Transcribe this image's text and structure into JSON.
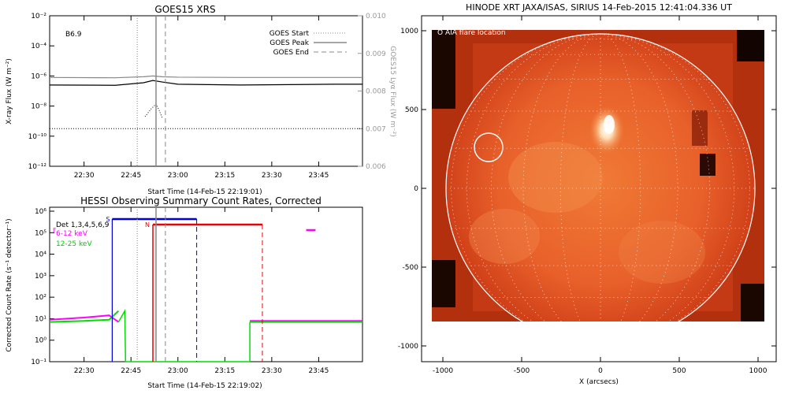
{
  "chart_data": [
    {
      "type": "line",
      "title": "GOES15 XRS",
      "xlabel": "Start Time (14-Feb-15 22:19:01)",
      "ylabel": "X-ray Flux (W m⁻²)",
      "y2label": "GOES15 Lyα Flux (W m⁻²)",
      "x_ticks": [
        "22:30",
        "22:45",
        "23:00",
        "23:15",
        "23:30",
        "23:45"
      ],
      "y_ticks": [
        "10⁻²",
        "10⁻⁴",
        "10⁻⁶",
        "10⁻⁸",
        "10⁻¹⁰",
        "10⁻¹²"
      ],
      "y2_ticks": [
        "0.010",
        "0.009",
        "0.008",
        "0.007",
        "0.006"
      ],
      "ylim_log10": [
        -12,
        -2
      ],
      "y2lim": [
        0.006,
        0.01
      ],
      "xlim_minutes_after_2219": [
        0,
        100
      ],
      "annotation": "B6.9",
      "legend": [
        "GOES Start",
        "GOES Peak",
        "GOES End"
      ],
      "legend_position": "top-right",
      "markers": {
        "start": "22:47",
        "peak": "22:53",
        "end": "22:56"
      },
      "series": [
        {
          "name": "",
          "color": "#888888",
          "style": "solid",
          "level_log10": -6.1,
          "x": [
            "22:19",
            "22:40",
            "22:49",
            "22:52",
            "22:55",
            "23:00",
            "23:20",
            "23:50",
            "23:59"
          ],
          "y_log10": [
            -6.1,
            -6.12,
            -6.05,
            -6.0,
            -6.05,
            -6.08,
            -6.1,
            -6.1,
            -6.1
          ]
        },
        {
          "name": "",
          "color": "#000000",
          "style": "solid",
          "x": [
            "22:19",
            "22:40",
            "22:49",
            "22:52",
            "22:55",
            "23:00",
            "23:20",
            "23:50",
            "23:59"
          ],
          "y_log10": [
            -6.6,
            -6.62,
            -6.45,
            -6.3,
            -6.4,
            -6.55,
            -6.6,
            -6.55,
            -6.55
          ]
        },
        {
          "name": "",
          "color": "#000000",
          "style": "dotted",
          "x": [
            "22:19",
            "23:59"
          ],
          "y_log10": [
            -9.5,
            -9.5
          ]
        }
      ]
    },
    {
      "type": "line",
      "title": "HESSI Observing Summary Count Rates, Corrected",
      "xlabel": "Start Time (14-Feb-15 22:19:02)",
      "ylabel": "Corrected Count Rate (s⁻¹ detector⁻¹)",
      "x_ticks": [
        "22:30",
        "22:45",
        "23:00",
        "23:15",
        "23:30",
        "23:45"
      ],
      "y_ticks": [
        "10⁶",
        "10⁵",
        "10⁴",
        "10³",
        "10²",
        "10¹",
        "10⁰",
        "10⁻¹"
      ],
      "ylim_log10": [
        -1,
        6
      ],
      "legend_title": "Det 1,3,4,5,6,9",
      "legend": [
        "6-12 keV",
        "12-25 keV"
      ],
      "legend_position": "top-left",
      "flags": {
        "S": "22:39 – 23:06",
        "N": "22:52 – 23:27",
        "F": "23:41 – 23:44"
      },
      "series": [
        {
          "name": "6-12 keV",
          "color": "#ff00ff",
          "x": [
            "22:19",
            "22:30",
            "22:38",
            "22:41",
            "23:23",
            "23:59"
          ],
          "y_log10": [
            0.9,
            1.0,
            1.1,
            0.8,
            0.85,
            0.85
          ]
        },
        {
          "name": "12-25 keV",
          "color": "#00dd00",
          "x": [
            "22:19",
            "22:30",
            "22:38",
            "22:41",
            "23:23",
            "23:59"
          ],
          "y_log10": [
            0.8,
            0.85,
            0.9,
            1.3,
            0.8,
            0.8
          ]
        }
      ]
    },
    {
      "type": "heatmap",
      "title": "HINODE XRT JAXA/ISAS, SIRIUS 14-Feb-2015 12:41:04.336 UT",
      "xlabel": "X (arcsecs)",
      "ylabel": "",
      "x_ticks": [
        "-1000",
        "-500",
        "0",
        "500",
        "1000"
      ],
      "y_ticks": [
        "1000",
        "500",
        "0",
        "-500",
        "-1000"
      ],
      "xlim": [
        -1050,
        1050
      ],
      "ylim": [
        -1050,
        1050
      ],
      "annotation": "O AIA flare location",
      "flare_location": {
        "x": -710,
        "y": 260,
        "r": 90
      },
      "solar_radius_arcsec": 980
    }
  ]
}
